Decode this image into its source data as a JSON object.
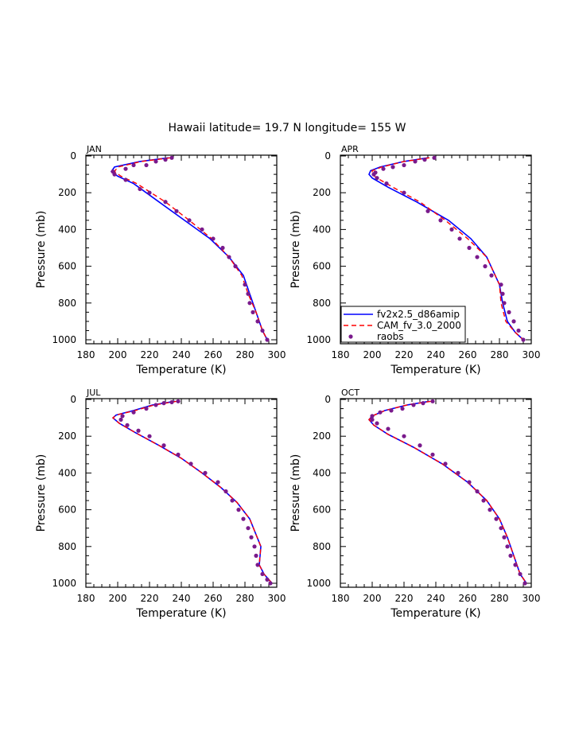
{
  "title": "Hawaii  latitude= 19.7 N longitude= 155 W",
  "xlabel": "Temperature (K)",
  "ylabel": "Pressure (mb)",
  "legend": [
    {
      "name": "fv2x2.5_d86amip",
      "color": "#0000ff",
      "style": "solid"
    },
    {
      "name": "CAM_fv_3.0_2000",
      "color": "#ff0000",
      "style": "dashed"
    },
    {
      "name": "raobs",
      "color": "#7a1a8c",
      "style": "dots"
    }
  ],
  "chart_data": [
    {
      "type": "line",
      "panel": "JAN",
      "xlim": [
        180,
        300
      ],
      "ylim": [
        1000,
        0
      ],
      "yaxis": "inverted",
      "xticks": [
        180,
        200,
        220,
        240,
        260,
        280,
        300
      ],
      "yticks": [
        0,
        200,
        400,
        600,
        800,
        1000
      ],
      "series": [
        {
          "name": "fv2x2.5_d86amip",
          "x": [
            232,
            214,
            198,
            196,
            200,
            210,
            226,
            242,
            258,
            270,
            279,
            283,
            287,
            291,
            294
          ],
          "y": [
            10,
            30,
            60,
            85,
            110,
            150,
            250,
            350,
            450,
            550,
            650,
            750,
            850,
            950,
            1000
          ]
        },
        {
          "name": "CAM_fv_3.0_2000",
          "x": [
            233,
            215,
            200,
            198,
            202,
            212,
            230,
            245,
            259,
            270,
            278,
            282,
            287,
            291,
            294
          ],
          "y": [
            10,
            30,
            60,
            85,
            110,
            150,
            250,
            350,
            450,
            550,
            650,
            750,
            850,
            950,
            1000
          ]
        },
        {
          "name": "raobs",
          "x": [
            234,
            230,
            224,
            218,
            210,
            205,
            198,
            197,
            205,
            214,
            220,
            230,
            237,
            245,
            253,
            260,
            266,
            270,
            274,
            280,
            282,
            283,
            285,
            288,
            291,
            294
          ],
          "y": [
            10,
            20,
            30,
            50,
            50,
            70,
            100,
            85,
            130,
            180,
            200,
            250,
            300,
            350,
            400,
            450,
            500,
            550,
            600,
            700,
            750,
            800,
            850,
            900,
            950,
            1000
          ]
        }
      ]
    },
    {
      "type": "line",
      "panel": "APR",
      "xlim": [
        180,
        300
      ],
      "ylim": [
        1000,
        0
      ],
      "yaxis": "inverted",
      "xticks": [
        180,
        200,
        220,
        240,
        260,
        280,
        300
      ],
      "yticks": [
        0,
        200,
        400,
        600,
        800,
        1000
      ],
      "series": [
        {
          "name": "fv2x2.5_d86amip",
          "x": [
            235,
            220,
            205,
            199,
            198,
            200,
            210,
            228,
            248,
            262,
            272,
            280,
            282,
            285,
            290,
            295
          ],
          "y": [
            10,
            30,
            60,
            80,
            100,
            120,
            170,
            250,
            350,
            450,
            550,
            700,
            800,
            900,
            960,
            1000
          ]
        },
        {
          "name": "CAM_fv_3.0_2000",
          "x": [
            236,
            220,
            206,
            200,
            200,
            203,
            213,
            230,
            246,
            260,
            272,
            280,
            281,
            284,
            290,
            295
          ],
          "y": [
            10,
            30,
            60,
            80,
            100,
            120,
            170,
            250,
            350,
            450,
            550,
            700,
            800,
            900,
            960,
            1000
          ]
        },
        {
          "name": "raobs",
          "x": [
            239,
            233,
            227,
            220,
            213,
            207,
            202,
            201,
            203,
            209,
            220,
            235,
            243,
            250,
            255,
            261,
            266,
            271,
            275,
            281,
            282,
            283,
            286,
            289,
            292,
            295
          ],
          "y": [
            10,
            20,
            30,
            50,
            60,
            70,
            90,
            100,
            120,
            150,
            200,
            300,
            350,
            400,
            450,
            500,
            550,
            600,
            650,
            700,
            750,
            800,
            850,
            900,
            950,
            1000
          ]
        }
      ]
    },
    {
      "type": "line",
      "panel": "JUL",
      "xlim": [
        180,
        300
      ],
      "ylim": [
        1000,
        0
      ],
      "yaxis": "inverted",
      "xticks": [
        180,
        200,
        220,
        240,
        260,
        280,
        300
      ],
      "yticks": [
        0,
        200,
        400,
        600,
        800,
        1000
      ],
      "series": [
        {
          "name": "fv2x2.5_d86amip",
          "x": [
            236,
            222,
            210,
            199,
            197,
            201,
            211,
            226,
            240,
            253,
            265,
            275,
            283,
            290,
            289,
            292,
            297
          ],
          "y": [
            10,
            30,
            60,
            85,
            100,
            130,
            180,
            250,
            320,
            400,
            480,
            560,
            650,
            800,
            900,
            950,
            1000
          ]
        },
        {
          "name": "CAM_fv_3.0_2000",
          "x": [
            237,
            223,
            211,
            199,
            197,
            201,
            211,
            226,
            240,
            253,
            265,
            275,
            283,
            290,
            289,
            292,
            297
          ],
          "y": [
            10,
            30,
            60,
            85,
            100,
            130,
            180,
            250,
            320,
            400,
            480,
            560,
            650,
            800,
            900,
            950,
            1000
          ]
        },
        {
          "name": "raobs",
          "x": [
            238,
            234,
            229,
            224,
            218,
            210,
            203,
            202,
            206,
            213,
            220,
            229,
            238,
            246,
            255,
            263,
            268,
            272,
            276,
            279,
            282,
            284,
            286,
            287,
            288,
            291,
            294,
            296
          ],
          "y": [
            10,
            15,
            20,
            30,
            50,
            70,
            90,
            110,
            140,
            170,
            200,
            250,
            300,
            350,
            400,
            450,
            500,
            550,
            600,
            650,
            700,
            750,
            800,
            850,
            900,
            950,
            980,
            1000
          ]
        }
      ]
    },
    {
      "type": "line",
      "panel": "OCT",
      "xlim": [
        180,
        300
      ],
      "ylim": [
        1000,
        0
      ],
      "yaxis": "inverted",
      "xticks": [
        180,
        200,
        220,
        240,
        260,
        280,
        300
      ],
      "yticks": [
        0,
        200,
        400,
        600,
        800,
        1000
      ],
      "series": [
        {
          "name": "fv2x2.5_d86amip",
          "x": [
            236,
            222,
            208,
            200,
            198,
            201,
            210,
            226,
            244,
            260,
            272,
            280,
            285,
            289,
            293,
            297
          ],
          "y": [
            10,
            30,
            60,
            90,
            110,
            140,
            190,
            260,
            350,
            450,
            550,
            650,
            750,
            850,
            950,
            1000
          ]
        },
        {
          "name": "CAM_fv_3.0_2000",
          "x": [
            237,
            222,
            208,
            200,
            198,
            201,
            210,
            226,
            244,
            260,
            272,
            280,
            285,
            289,
            293,
            297
          ],
          "y": [
            10,
            30,
            60,
            90,
            110,
            140,
            190,
            260,
            350,
            450,
            550,
            650,
            750,
            850,
            950,
            1000
          ]
        },
        {
          "name": "raobs",
          "x": [
            238,
            232,
            226,
            219,
            212,
            205,
            200,
            200,
            203,
            210,
            220,
            230,
            238,
            246,
            254,
            261,
            266,
            270,
            274,
            278,
            281,
            283,
            285,
            287,
            290,
            293,
            296
          ],
          "y": [
            10,
            20,
            30,
            50,
            60,
            70,
            90,
            110,
            130,
            160,
            200,
            250,
            300,
            350,
            400,
            450,
            500,
            550,
            600,
            650,
            700,
            750,
            800,
            850,
            900,
            950,
            1000
          ]
        }
      ]
    }
  ]
}
